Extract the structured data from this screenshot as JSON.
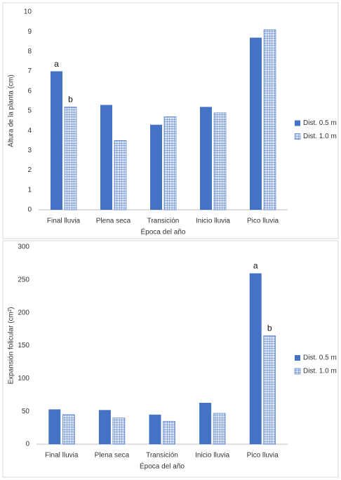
{
  "chart_data": [
    {
      "type": "bar",
      "y_label": "Altura de la planta (cm)",
      "x_label": "Época del año",
      "categories": [
        "Final lluvia",
        "Plena seca",
        "Transición",
        "Inicio lluvia",
        "Pico lluvia"
      ],
      "series": [
        {
          "name": "Dist. 0.5 m",
          "color": "#4472c4",
          "hatch": false,
          "values": [
            7.0,
            5.3,
            4.3,
            5.2,
            8.7
          ]
        },
        {
          "name": "Dist. 1.0 m",
          "color": "#4472c4",
          "hatch": true,
          "values": [
            5.2,
            3.5,
            4.7,
            4.9,
            9.1
          ]
        }
      ],
      "annotations": [
        {
          "text": "a",
          "category": "Final lluvia",
          "series": "Dist. 0.5 m"
        },
        {
          "text": "b",
          "category": "Final lluvia",
          "series": "Dist. 1.0 m"
        }
      ],
      "ylim": [
        0,
        10
      ],
      "yticks": [
        0,
        1,
        2,
        3,
        4,
        5,
        6,
        7,
        8,
        9,
        10
      ],
      "grid": false,
      "legend": "right"
    },
    {
      "type": "bar",
      "y_label": "Expansión folicular (cm²)",
      "x_label": "Época del año",
      "categories": [
        "Final lluvia",
        "Plena seca",
        "Transición",
        "Inicio lluvia",
        "Pico lluvia"
      ],
      "series": [
        {
          "name": "Dist. 0.5 m",
          "color": "#4472c4",
          "hatch": false,
          "values": [
            53,
            52,
            45,
            63,
            260
          ]
        },
        {
          "name": "Dist. 1.0 m",
          "color": "#4472c4",
          "hatch": true,
          "values": [
            45,
            40,
            35,
            47,
            165
          ]
        }
      ],
      "annotations": [
        {
          "text": "a",
          "category": "Pico lluvia",
          "series": "Dist. 0.5 m"
        },
        {
          "text": "b",
          "category": "Pico lluvia",
          "series": "Dist. 1.0 m"
        }
      ],
      "ylim": [
        0,
        300
      ],
      "yticks": [
        0,
        50,
        100,
        150,
        200,
        250,
        300
      ],
      "grid": false,
      "legend": "right"
    }
  ]
}
